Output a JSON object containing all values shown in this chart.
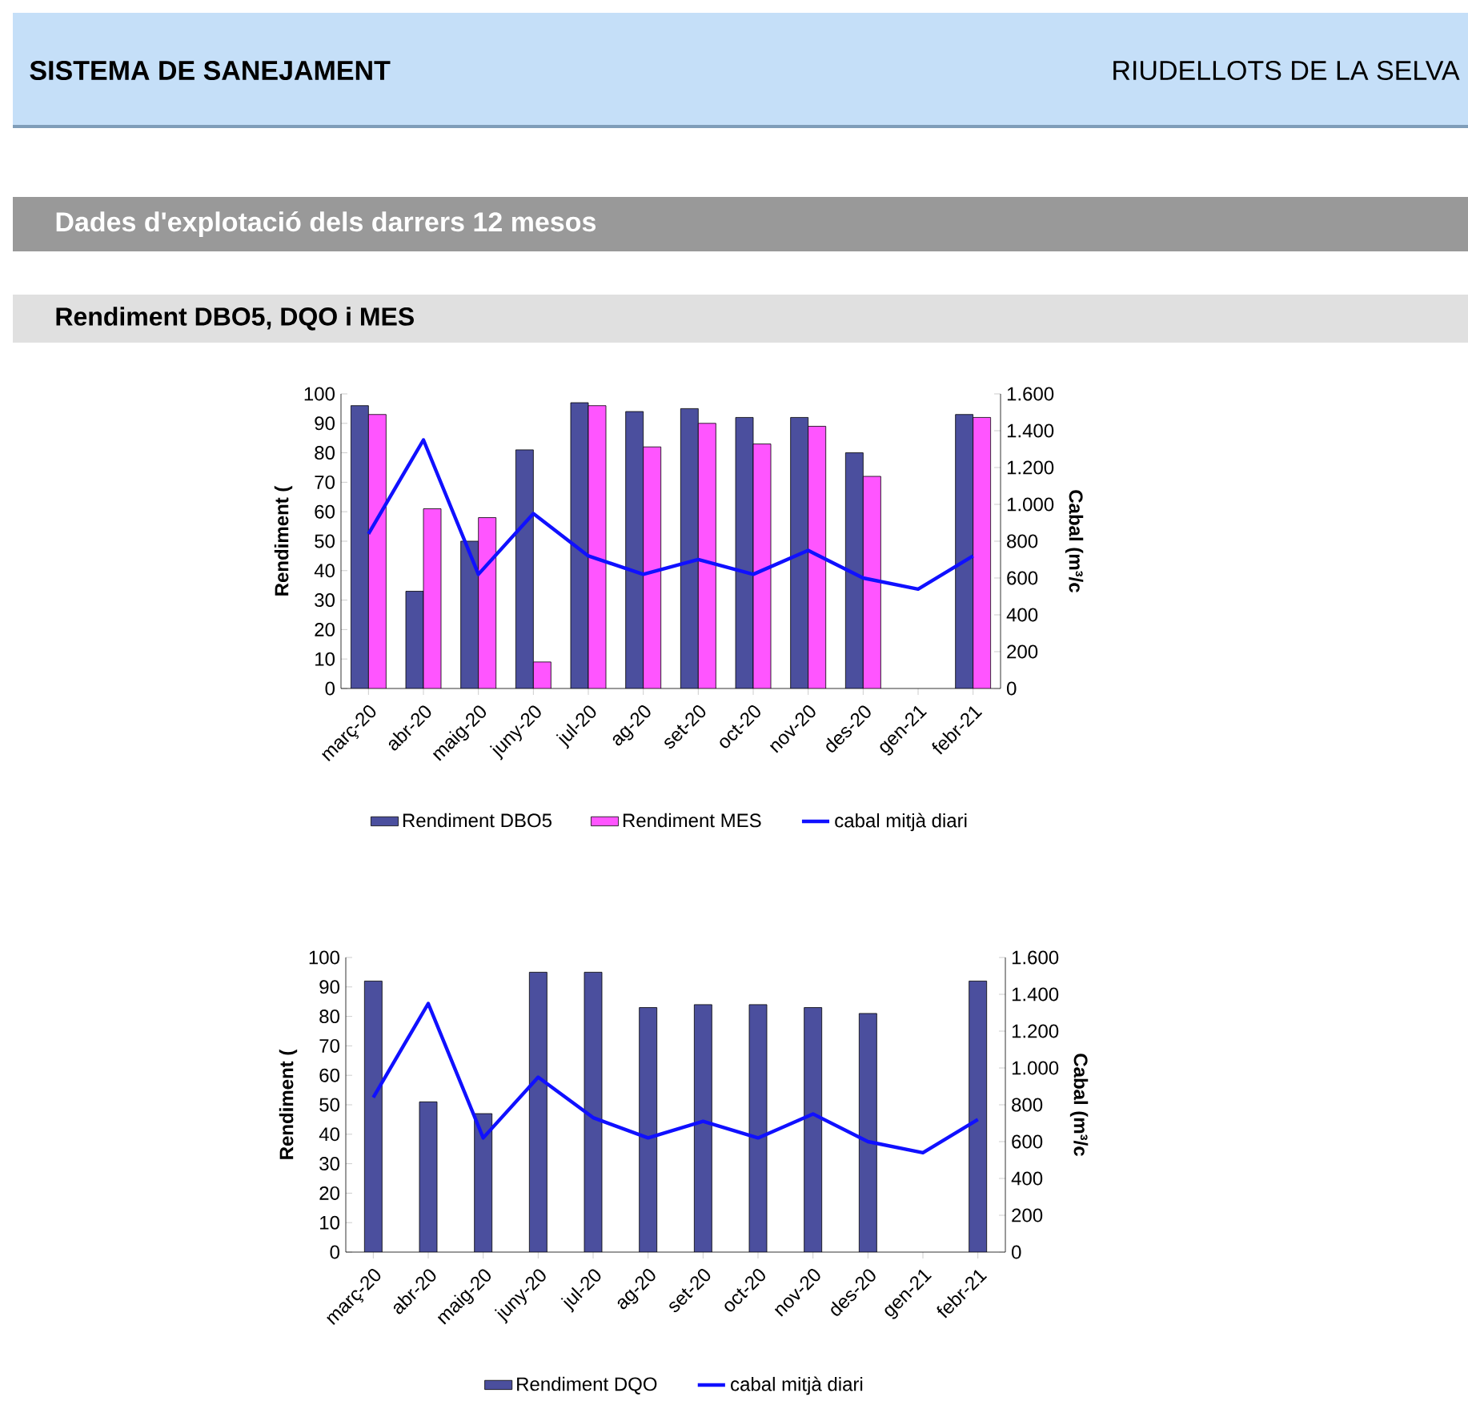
{
  "chart_data": [
    {
      "type": "bar",
      "title": "Rendiment DBO5, DQO i MES",
      "annotations": [
        "SISTEMA DE SANEJAMENT",
        "RIUDELLOTS DE LA SELVA",
        "Dades d'explotació dels darrers 12 mesos"
      ],
      "categories": [
        "març-20",
        "abr-20",
        "maig-20",
        "juny-20",
        "jul-20",
        "ag-20",
        "set-20",
        "oct-20",
        "nov-20",
        "des-20",
        "gen-21",
        "febr-21"
      ],
      "series": [
        {
          "name": "Rendiment DBO5",
          "color": "#4b4f9e",
          "values": [
            96,
            33,
            50,
            81,
            97,
            94,
            95,
            92,
            92,
            80,
            null,
            93
          ]
        },
        {
          "name": "Rendiment MES",
          "color": "#ff55ff",
          "values": [
            93,
            61,
            58,
            9,
            96,
            82,
            90,
            83,
            89,
            72,
            null,
            92
          ]
        },
        {
          "name": "cabal mitjà diari",
          "type": "line",
          "axis": "y2",
          "color": "#1010ff",
          "values": [
            840,
            1350,
            620,
            950,
            720,
            620,
            700,
            620,
            750,
            600,
            540,
            720
          ]
        }
      ],
      "ylabel": "Rendiment (",
      "y2label": "Cabal (m³/c",
      "ylim": [
        0,
        100
      ],
      "yticks": [
        0,
        10,
        20,
        30,
        40,
        50,
        60,
        70,
        80,
        90,
        100
      ],
      "y2lim": [
        0,
        1600
      ],
      "y2ticks": [
        0,
        200,
        400,
        600,
        800,
        {
          "value": 1000,
          "label": "1.000"
        },
        {
          "value": 1200,
          "label": "1.200"
        },
        {
          "value": 1400,
          "label": "1.400"
        },
        {
          "value": 1600,
          "label": "1.600"
        }
      ],
      "legend": "bottom"
    },
    {
      "type": "bar",
      "categories": [
        "març-20",
        "abr-20",
        "maig-20",
        "juny-20",
        "jul-20",
        "ag-20",
        "set-20",
        "oct-20",
        "nov-20",
        "des-20",
        "gen-21",
        "febr-21"
      ],
      "series": [
        {
          "name": "Rendiment DQO",
          "color": "#4b4f9e",
          "values": [
            92,
            51,
            47,
            95,
            95,
            83,
            84,
            84,
            83,
            81,
            null,
            92
          ]
        },
        {
          "name": "cabal mitjà diari",
          "type": "line",
          "axis": "y2",
          "color": "#1010ff",
          "values": [
            840,
            1350,
            620,
            950,
            730,
            620,
            710,
            620,
            750,
            600,
            540,
            720
          ]
        }
      ],
      "ylabel": "Rendiment (",
      "y2label": "Cabal (m³/c",
      "ylim": [
        0,
        100
      ],
      "yticks": [
        0,
        10,
        20,
        30,
        40,
        50,
        60,
        70,
        80,
        90,
        100
      ],
      "y2lim": [
        0,
        1600
      ],
      "y2ticks": [
        0,
        200,
        400,
        600,
        800,
        {
          "value": 1000,
          "label": "1.000"
        },
        {
          "value": 1200,
          "label": "1.200"
        },
        {
          "value": 1400,
          "label": "1.400"
        },
        {
          "value": 1600,
          "label": "1.600"
        }
      ],
      "legend": "bottom"
    }
  ]
}
